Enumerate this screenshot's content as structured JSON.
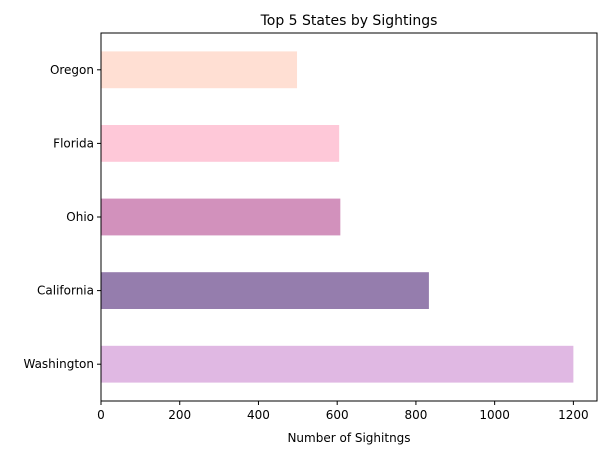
{
  "chart_data": {
    "type": "bar",
    "orientation": "horizontal",
    "title": "Top 5 States by Sightings",
    "xlabel": "Number of Sighitngs",
    "ylabel": "",
    "xlim": [
      0,
      1260
    ],
    "xticks": [
      0,
      200,
      400,
      600,
      800,
      1000,
      1200
    ],
    "categories": [
      "Washington",
      "California",
      "Ohio",
      "Florida",
      "Oregon"
    ],
    "values": [
      1200,
      833,
      608,
      605,
      498
    ],
    "colors": [
      "#e0b8e3",
      "#957dad",
      "#d291bc",
      "#fec8d8",
      "#ffdfd3"
    ],
    "grid": false,
    "legend": false
  }
}
